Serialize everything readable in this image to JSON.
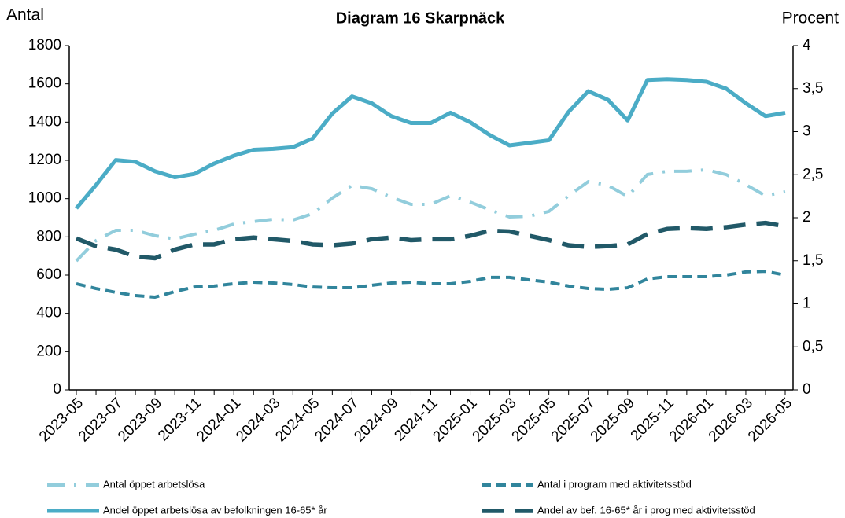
{
  "chart_data": {
    "type": "line",
    "title": "Diagram 16 Skarpnäck",
    "y_label": "Antal",
    "y2_label": "Procent",
    "categories": [
      "2023-05",
      null,
      "2023-07",
      null,
      "2023-09",
      null,
      "2023-11",
      null,
      "2024-01",
      null,
      "2024-03",
      null,
      "2024-05",
      null,
      "2024-07",
      null,
      "2024-09",
      null,
      "2024-11",
      null,
      "2025-01",
      null,
      "2025-03",
      null,
      "2025-05",
      null,
      "2025-07",
      null,
      "2025-09",
      null,
      "2025-11",
      null,
      "2026-01",
      null,
      "2026-03",
      null,
      "2026-05"
    ],
    "ylim": [
      0,
      1800
    ],
    "yticks": [
      0,
      200,
      400,
      600,
      800,
      1000,
      1200,
      1400,
      1600,
      1800
    ],
    "y2lim": [
      0,
      4
    ],
    "y2ticks": [
      0,
      {
        "value": 0.5,
        "label": "0,5"
      },
      1,
      {
        "value": 1.5,
        "label": "1,5"
      },
      2,
      {
        "value": 2.5,
        "label": "2,5"
      },
      3,
      {
        "value": 3.5,
        "label": "3,5"
      },
      4
    ],
    "series": [
      {
        "name": "Antal öppet arbetslösa",
        "color": "#92cddc",
        "dash": "dashdot",
        "axis": "y",
        "values": [
          674,
          781,
          834,
          834,
          806,
          789,
          814,
          834,
          867,
          880,
          892,
          888,
          921,
          1003,
          1069,
          1052,
          1007,
          970,
          970,
          1015,
          982,
          941,
          904,
          908,
          933,
          1015,
          1089,
          1069,
          1011,
          1126,
          1143,
          1143,
          1151,
          1126,
          1073,
          1015,
          1036
        ]
      },
      {
        "name": "Antal i program med aktivitetsstöd",
        "color": "#31859c",
        "dash": "dash",
        "axis": "y",
        "values": [
          555,
          530,
          510,
          493,
          485,
          514,
          538,
          543,
          555,
          563,
          559,
          551,
          538,
          534,
          534,
          547,
          559,
          563,
          555,
          555,
          567,
          588,
          588,
          575,
          563,
          543,
          530,
          526,
          534,
          580,
          592,
          592,
          592,
          600,
          617,
          620,
          600
        ]
      },
      {
        "name": "Andel öppet arbetslösa av befolkningen 16-65* år",
        "color": "#4bacc6",
        "dash": "solid",
        "axis": "y2",
        "values": [
          2.11,
          2.38,
          2.67,
          2.65,
          2.54,
          2.47,
          2.51,
          2.63,
          2.72,
          2.79,
          2.8,
          2.82,
          2.92,
          3.21,
          3.41,
          3.33,
          3.18,
          3.1,
          3.1,
          3.22,
          3.11,
          2.96,
          2.84,
          2.87,
          2.9,
          3.23,
          3.47,
          3.37,
          3.13,
          3.6,
          3.61,
          3.6,
          3.58,
          3.5,
          3.33,
          3.18,
          3.22
        ]
      },
      {
        "name": "Andel av bef. 16-65* år i prog med aktivitetsstöd",
        "color": "#215968",
        "dash": "longdash",
        "axis": "y2",
        "values": [
          1.76,
          1.67,
          1.63,
          1.55,
          1.53,
          1.63,
          1.69,
          1.69,
          1.75,
          1.77,
          1.75,
          1.73,
          1.69,
          1.68,
          1.7,
          1.75,
          1.77,
          1.74,
          1.75,
          1.75,
          1.79,
          1.85,
          1.84,
          1.79,
          1.74,
          1.68,
          1.66,
          1.67,
          1.69,
          1.81,
          1.87,
          1.88,
          1.87,
          1.89,
          1.92,
          1.94,
          1.9
        ]
      }
    ]
  }
}
